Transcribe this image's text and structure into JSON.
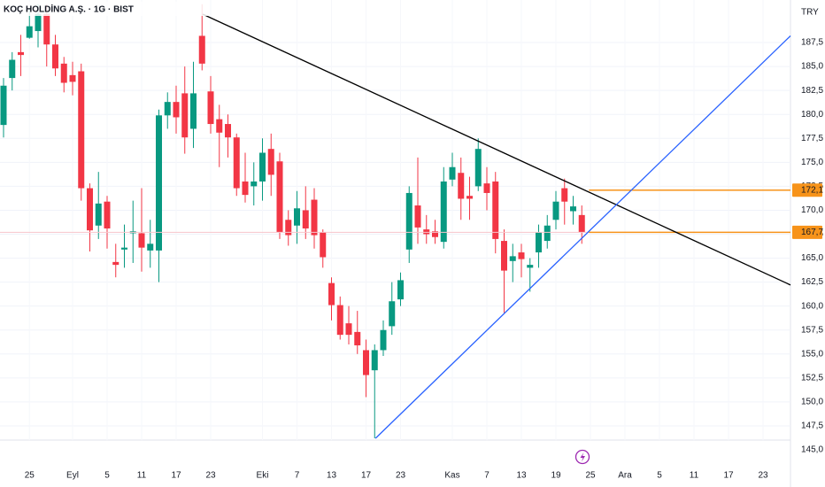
{
  "chart_data": {
    "type": "candlestick",
    "title": "KOÇ HOLDİNG A.Ş. · 1G · BIST",
    "currency": "TRY",
    "up_color": "#089981",
    "down_color": "#f23645",
    "categories": [
      null,
      null,
      null,
      "25",
      null,
      null,
      null,
      null,
      "Eyl",
      null,
      null,
      null,
      "5",
      null,
      null,
      null,
      "11",
      null,
      null,
      null,
      "17",
      null,
      null,
      null,
      "23",
      null,
      null,
      null,
      null,
      null,
      "Eki",
      null,
      null,
      null,
      "7",
      null,
      null,
      null,
      "13",
      null,
      null,
      null,
      "17",
      null,
      null,
      null,
      "23",
      null,
      null,
      null,
      null,
      null,
      "Kas",
      null,
      null,
      null,
      "7",
      null,
      null,
      null,
      "13",
      null,
      null,
      null,
      "19",
      null,
      null,
      null,
      "25",
      null,
      null,
      null,
      "Ara",
      null,
      null,
      null,
      "5",
      null,
      null,
      null,
      "11",
      null,
      null,
      null,
      "17",
      null,
      null,
      null,
      "23",
      null,
      null,
      null
    ],
    "open": [
      178.9,
      183.8,
      186.5,
      188.0,
      188.7,
      190.5,
      187.3,
      185.3,
      184.1,
      184.5,
      172.3,
      168.4,
      170.9,
      164.6,
      165.9,
      167.6,
      167.6,
      165.8,
      165.8,
      179.9,
      181.3,
      182.2,
      178.5,
      188.2,
      182.4,
      179.5,
      179.0,
      177.6,
      173.0,
      172.5,
      173.0,
      176.4,
      175.1,
      169.0,
      168.4,
      170.0,
      171.1,
      167.7,
      162.4,
      160.1,
      158.2,
      157.3,
      155.4,
      153.3,
      155.4,
      157.9,
      160.7,
      165.9,
      170.5,
      168.0,
      167.8,
      166.7,
      173.2,
      173.9,
      171.5,
      172.5,
      172.8,
      173.0,
      166.8,
      164.7,
      165.6,
      164.0,
      165.6,
      166.8,
      169.0,
      172.3,
      169.9,
      169.5,
      null,
      null,
      null,
      null,
      null,
      null,
      null,
      null,
      null,
      null,
      null,
      null,
      null,
      null,
      null,
      null,
      null,
      null,
      null,
      null,
      null,
      null,
      null,
      null
    ],
    "high": [
      183.8,
      186.5,
      188.3,
      191.0,
      191.5,
      191.5,
      188.3,
      186.0,
      185.5,
      185.3,
      172.8,
      174.0,
      171.5,
      166.5,
      168.5,
      171.0,
      172.3,
      169.0,
      180.5,
      182.3,
      183.0,
      185.0,
      185.5,
      191.5,
      184.0,
      181.0,
      180.0,
      178.0,
      176.0,
      175.0,
      177.5,
      178.0,
      176.0,
      170.0,
      172.0,
      172.5,
      172.3,
      168.0,
      163.0,
      161.0,
      160.0,
      159.5,
      156.5,
      156.0,
      158.5,
      162.5,
      163.5,
      172.5,
      175.5,
      169.5,
      169.0,
      174.5,
      176.0,
      175.5,
      173.5,
      177.5,
      174.5,
      174.0,
      168.0,
      166.5,
      166.5,
      165.0,
      168.5,
      169.5,
      172.0,
      173.3,
      171.5,
      170.5,
      null,
      null,
      null,
      null,
      null,
      null,
      null,
      null,
      null,
      null,
      null,
      null,
      null,
      null,
      null,
      null,
      null,
      null,
      null,
      null,
      null,
      null,
      null,
      null
    ],
    "low": [
      177.6,
      182.5,
      184.0,
      187.9,
      187.0,
      185.0,
      184.0,
      182.3,
      182.0,
      171.0,
      165.7,
      167.0,
      166.0,
      163.0,
      164.0,
      164.5,
      163.6,
      164.0,
      162.5,
      178.5,
      178.0,
      175.9,
      176.5,
      184.6,
      178.0,
      174.5,
      175.5,
      171.5,
      170.8,
      170.5,
      171.0,
      171.5,
      167.0,
      166.3,
      166.5,
      167.0,
      166.0,
      164.0,
      158.5,
      156.5,
      156.0,
      155.0,
      150.5,
      146.2,
      154.8,
      157.0,
      160.0,
      164.5,
      166.5,
      166.5,
      166.5,
      166.0,
      172.5,
      169.0,
      169.0,
      172.0,
      170.0,
      165.5,
      159.3,
      162.5,
      163.0,
      161.5,
      164.0,
      166.0,
      168.0,
      168.5,
      168.5,
      166.5,
      null,
      null,
      null,
      null,
      null,
      null,
      null,
      null,
      null,
      null,
      null,
      null,
      null,
      null,
      null,
      null,
      null,
      null,
      null,
      null,
      null,
      null,
      null,
      null
    ],
    "close": [
      183.0,
      185.7,
      186.2,
      189.2,
      190.5,
      187.3,
      184.8,
      183.3,
      183.4,
      172.3,
      167.9,
      170.7,
      168.1,
      164.3,
      166.1,
      167.8,
      166.1,
      166.5,
      179.9,
      181.3,
      179.7,
      177.6,
      182.2,
      185.3,
      179.0,
      178.1,
      177.6,
      172.3,
      171.6,
      173.0,
      176.0,
      173.7,
      167.7,
      167.4,
      170.2,
      168.1,
      167.4,
      165.1,
      160.1,
      157.0,
      157.0,
      155.9,
      152.8,
      155.4,
      157.5,
      160.5,
      162.7,
      171.8,
      168.2,
      167.5,
      167.2,
      173.0,
      174.5,
      171.2,
      171.2,
      176.4,
      171.8,
      167.0,
      163.7,
      165.2,
      164.9,
      164.3,
      167.7,
      168.4,
      170.9,
      170.9,
      170.4,
      167.7,
      null,
      null,
      null,
      null,
      null,
      null,
      null,
      null,
      null,
      null,
      null,
      null,
      null,
      null,
      null,
      null,
      null,
      null,
      null,
      null,
      null,
      null,
      null,
      null
    ],
    "ylim": [
      145.0,
      191.94
    ],
    "yticks": [
      {
        "value": 145.0,
        "label": "145,0"
      },
      {
        "value": 147.5,
        "label": "147,5"
      },
      {
        "value": 150.0,
        "label": "150,0"
      },
      {
        "value": 152.5,
        "label": "152,5"
      },
      {
        "value": 155.0,
        "label": "155,0"
      },
      {
        "value": 157.5,
        "label": "157,5"
      },
      {
        "value": 160.0,
        "label": "160,0"
      },
      {
        "value": 162.5,
        "label": "162,5"
      },
      {
        "value": 165.0,
        "label": "165,0"
      },
      {
        "value": 167.5,
        "label": "167,5"
      },
      {
        "value": 170.0,
        "label": "170,0"
      },
      {
        "value": 172.5,
        "label": "172,5"
      },
      {
        "value": 175.0,
        "label": "175,0"
      },
      {
        "value": 177.5,
        "label": "177,5"
      },
      {
        "value": 180.0,
        "label": "180,0"
      },
      {
        "value": 182.5,
        "label": "182,5"
      },
      {
        "value": 185.0,
        "label": "185,0"
      },
      {
        "value": 187.5,
        "label": "187,5"
      }
    ],
    "grid": true,
    "trendlines": [
      {
        "color": "#000000",
        "points": [
          [
            23.08,
            190.46
          ],
          [
            91.18,
            162.2
          ]
        ]
      },
      {
        "color": "#2962ff",
        "points": [
          [
            43.1,
            146.2
          ],
          [
            91.18,
            188.2
          ]
        ]
      }
    ],
    "price_lines": [
      {
        "value": 172.1,
        "label": "172,1",
        "color": "#f7931a"
      },
      {
        "value": 167.7,
        "label": "167,7",
        "color": "#f7931a"
      }
    ]
  }
}
